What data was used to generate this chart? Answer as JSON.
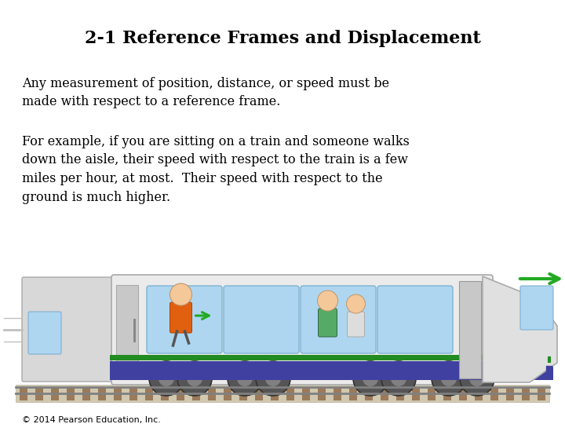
{
  "title": "2-1 Reference Frames and Displacement",
  "para1": "Any measurement of position, distance, or speed must be\nmade with respect to a reference frame.",
  "para2": "For example, if you are sitting on a train and someone walks\ndown the aisle, their speed with respect to the train is a few\nmiles per hour, at most.  Their speed with respect to the\nground is much higher.",
  "footer": "© 2014 Pearson Education, Inc.",
  "bg_color": "#ffffff",
  "title_color": "#000000",
  "text_color": "#000000",
  "footer_color": "#000000",
  "title_fontsize": 16,
  "body_fontsize": 11.5,
  "footer_fontsize": 8
}
